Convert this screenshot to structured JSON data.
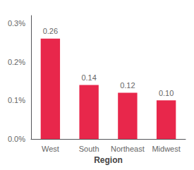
{
  "chart_data": {
    "type": "bar",
    "xlabel": "Region",
    "categories": [
      "West",
      "South",
      "Northeast",
      "Midwest"
    ],
    "values": [
      0.26,
      0.14,
      0.12,
      0.1
    ],
    "value_labels": [
      "0.26",
      "0.14",
      "0.12",
      "0.10"
    ],
    "data_labels": true,
    "color": "#E8274B",
    "ylim": [
      0,
      0.32
    ],
    "yticks": [
      {
        "value": 0.0,
        "label": "0.0%"
      },
      {
        "value": 0.1,
        "label": "0.1%"
      },
      {
        "value": 0.2,
        "label": "0.2%"
      },
      {
        "value": 0.3,
        "label": "0.3%"
      }
    ],
    "grid": false
  }
}
